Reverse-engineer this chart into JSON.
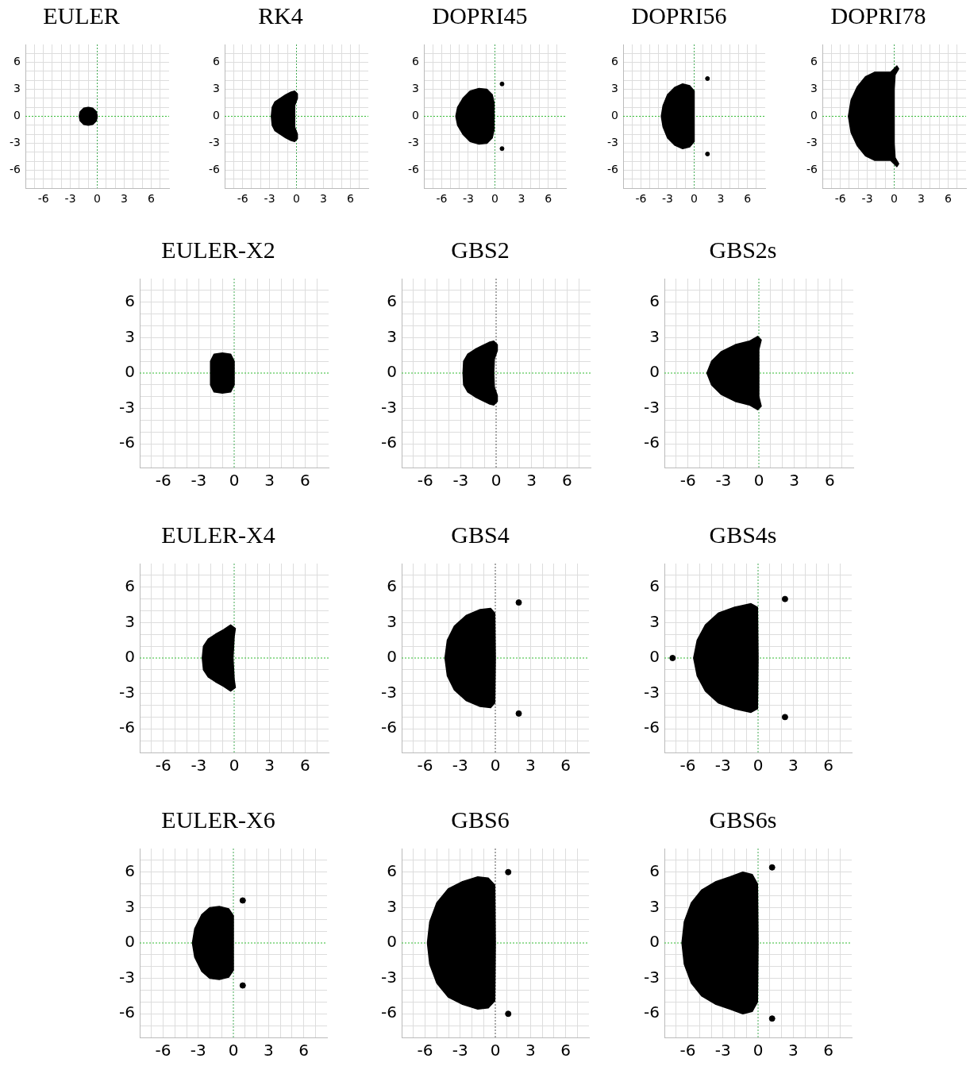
{
  "chart_data": [
    {
      "type": "area",
      "title": "EULER",
      "xlim": [
        -8,
        8
      ],
      "ylim": [
        -8,
        8
      ],
      "xticks": [
        {
          "value": -7,
          "label": null
        },
        -6,
        {
          "value": -5,
          "label": null
        },
        {
          "value": -4,
          "label": null
        },
        -3,
        {
          "value": -2,
          "label": null
        },
        {
          "value": -1,
          "label": null
        },
        0,
        {
          "value": 1,
          "label": null
        },
        {
          "value": 2,
          "label": null
        },
        3,
        {
          "value": 4,
          "label": null
        },
        {
          "value": 5,
          "label": null
        },
        6,
        {
          "value": 7,
          "label": null
        }
      ],
      "yticks": [
        {
          "value": -7,
          "label": null
        },
        -6,
        {
          "value": -5,
          "label": null
        },
        {
          "value": -4,
          "label": null
        },
        -3,
        {
          "value": -2,
          "label": null
        },
        {
          "value": -1,
          "label": null
        },
        0,
        {
          "value": 1,
          "label": null
        },
        {
          "value": 2,
          "label": null
        },
        3,
        {
          "value": 4,
          "label": null
        },
        {
          "value": 5,
          "label": null
        },
        6,
        {
          "value": 7,
          "label": null
        }
      ],
      "grid": true,
      "legend": false,
      "ref_lines": [
        {
          "axis": "x",
          "value": 0,
          "color": "#44aa55",
          "line_style": "dotted"
        },
        {
          "axis": "y",
          "value": 0,
          "color": "#33bb33",
          "line_style": "dotted"
        }
      ],
      "series": [
        {
          "type": "area",
          "color": "#000000",
          "x": [
            -2,
            -1.9,
            -1.5,
            -1,
            -0.5,
            -0.1,
            0,
            -0.1,
            -0.5,
            -1,
            -1.5,
            -1.9
          ],
          "values": [
            0,
            0.5,
            0.9,
            1,
            0.9,
            0.5,
            0,
            -0.5,
            -0.9,
            -1,
            -0.9,
            -0.5
          ]
        }
      ]
    },
    {
      "type": "area",
      "title": "RK4",
      "xlim": [
        -8,
        8
      ],
      "ylim": [
        -8,
        8
      ],
      "xticks": [
        {
          "value": -7,
          "label": null
        },
        -6,
        {
          "value": -5,
          "label": null
        },
        {
          "value": -4,
          "label": null
        },
        -3,
        {
          "value": -2,
          "label": null
        },
        {
          "value": -1,
          "label": null
        },
        0,
        {
          "value": 1,
          "label": null
        },
        {
          "value": 2,
          "label": null
        },
        3,
        {
          "value": 4,
          "label": null
        },
        {
          "value": 5,
          "label": null
        },
        6,
        {
          "value": 7,
          "label": null
        }
      ],
      "yticks": [
        {
          "value": -7,
          "label": null
        },
        -6,
        {
          "value": -5,
          "label": null
        },
        {
          "value": -4,
          "label": null
        },
        -3,
        {
          "value": -2,
          "label": null
        },
        {
          "value": -1,
          "label": null
        },
        0,
        {
          "value": 1,
          "label": null
        },
        {
          "value": 2,
          "label": null
        },
        3,
        {
          "value": 4,
          "label": null
        },
        {
          "value": 5,
          "label": null
        },
        6,
        {
          "value": 7,
          "label": null
        }
      ],
      "grid": true,
      "legend": false,
      "ref_lines": [
        {
          "axis": "x",
          "value": 0,
          "color": "#44aa55",
          "line_style": "dotted"
        },
        {
          "axis": "y",
          "value": 0,
          "color": "#33bb33",
          "line_style": "dotted"
        }
      ],
      "series": [
        {
          "type": "area",
          "color": "#000000",
          "x": [
            -2.8,
            -2.7,
            -2.4,
            -1.8,
            -1.2,
            -0.6,
            -0.2,
            0.1,
            0.1,
            -0.2,
            -0.2,
            -0.2,
            0.1,
            0.1,
            -0.2,
            -0.6,
            -1.2,
            -1.8,
            -2.4,
            -2.7
          ],
          "values": [
            0,
            1,
            1.6,
            2,
            2.4,
            2.7,
            2.8,
            2.5,
            2,
            1.2,
            0,
            -1.2,
            -2,
            -2.5,
            -2.8,
            -2.7,
            -2.4,
            -2,
            -1.6,
            -1
          ]
        }
      ]
    },
    {
      "type": "area",
      "title": "DOPRI45",
      "xlim": [
        -8,
        8
      ],
      "ylim": [
        -8,
        8
      ],
      "xticks": [
        {
          "value": -7,
          "label": null
        },
        -6,
        {
          "value": -5,
          "label": null
        },
        {
          "value": -4,
          "label": null
        },
        -3,
        {
          "value": -2,
          "label": null
        },
        {
          "value": -1,
          "label": null
        },
        0,
        {
          "value": 1,
          "label": null
        },
        {
          "value": 2,
          "label": null
        },
        3,
        {
          "value": 4,
          "label": null
        },
        {
          "value": 5,
          "label": null
        },
        6,
        {
          "value": 7,
          "label": null
        }
      ],
      "yticks": [
        {
          "value": -7,
          "label": null
        },
        -6,
        {
          "value": -5,
          "label": null
        },
        {
          "value": -4,
          "label": null
        },
        -3,
        {
          "value": -2,
          "label": null
        },
        {
          "value": -1,
          "label": null
        },
        0,
        {
          "value": 1,
          "label": null
        },
        {
          "value": 2,
          "label": null
        },
        3,
        {
          "value": 4,
          "label": null
        },
        {
          "value": 5,
          "label": null
        },
        6,
        {
          "value": 7,
          "label": null
        }
      ],
      "grid": true,
      "legend": false,
      "ref_lines": [
        {
          "axis": "x",
          "value": 0,
          "color": "#44aa55",
          "line_style": "dotted"
        },
        {
          "axis": "y",
          "value": 0,
          "color": "#33bb33",
          "line_style": "dotted"
        }
      ],
      "series": [
        {
          "type": "area",
          "color": "#000000",
          "x": [
            -4.4,
            -4.2,
            -3.6,
            -2.8,
            -1.8,
            -0.9,
            -0.3,
            -0.1,
            -0.1,
            -0.1,
            -0.3,
            -0.9,
            -1.8,
            -2.8,
            -3.6,
            -4.2
          ],
          "values": [
            0,
            1,
            2,
            2.8,
            3.1,
            3,
            2.4,
            1.5,
            0,
            -1.5,
            -2.4,
            -3,
            -3.1,
            -2.8,
            -2,
            -1
          ]
        },
        {
          "type": "scatter",
          "color": "#000000",
          "marker": "circle",
          "x": [
            0.8,
            0.8
          ],
          "values": [
            3.6,
            -3.6
          ]
        }
      ]
    },
    {
      "type": "area",
      "title": "DOPRI56",
      "xlim": [
        -8,
        8
      ],
      "ylim": [
        -8,
        8
      ],
      "xticks": [
        {
          "value": -7,
          "label": null
        },
        -6,
        {
          "value": -5,
          "label": null
        },
        {
          "value": -4,
          "label": null
        },
        -3,
        {
          "value": -2,
          "label": null
        },
        {
          "value": -1,
          "label": null
        },
        0,
        {
          "value": 1,
          "label": null
        },
        {
          "value": 2,
          "label": null
        },
        3,
        {
          "value": 4,
          "label": null
        },
        {
          "value": 5,
          "label": null
        },
        6,
        {
          "value": 7,
          "label": null
        }
      ],
      "yticks": [
        {
          "value": -7,
          "label": null
        },
        -6,
        {
          "value": -5,
          "label": null
        },
        {
          "value": -4,
          "label": null
        },
        -3,
        {
          "value": -2,
          "label": null
        },
        {
          "value": -1,
          "label": null
        },
        0,
        {
          "value": 1,
          "label": null
        },
        {
          "value": 2,
          "label": null
        },
        3,
        {
          "value": 4,
          "label": null
        },
        {
          "value": 5,
          "label": null
        },
        6,
        {
          "value": 7,
          "label": null
        }
      ],
      "grid": true,
      "legend": false,
      "ref_lines": [
        {
          "axis": "x",
          "value": 0,
          "color": "#44aa55",
          "line_style": "dotted"
        },
        {
          "axis": "y",
          "value": 0,
          "color": "#33bb33",
          "line_style": "dotted"
        }
      ],
      "series": [
        {
          "type": "area",
          "color": "#000000",
          "x": [
            -3.7,
            -3.5,
            -3,
            -2.2,
            -1.3,
            -0.5,
            0,
            0,
            0,
            -0.5,
            -1.3,
            -2.2,
            -3,
            -3.5
          ],
          "values": [
            0,
            1.2,
            2.4,
            3.2,
            3.6,
            3.4,
            2.8,
            0,
            -2.8,
            -3.4,
            -3.6,
            -3.2,
            -2.4,
            -1.2
          ]
        },
        {
          "type": "scatter",
          "color": "#000000",
          "marker": "circle",
          "x": [
            1.5,
            1.5
          ],
          "values": [
            4.2,
            -4.2
          ]
        }
      ]
    },
    {
      "type": "area",
      "title": "DOPRI78",
      "xlim": [
        -8,
        8
      ],
      "ylim": [
        -8,
        8
      ],
      "xticks": [
        {
          "value": -7,
          "label": null
        },
        -6,
        {
          "value": -5,
          "label": null
        },
        {
          "value": -4,
          "label": null
        },
        -3,
        {
          "value": -2,
          "label": null
        },
        {
          "value": -1,
          "label": null
        },
        0,
        {
          "value": 1,
          "label": null
        },
        {
          "value": 2,
          "label": null
        },
        3,
        {
          "value": 4,
          "label": null
        },
        {
          "value": 5,
          "label": null
        },
        6,
        {
          "value": 7,
          "label": null
        }
      ],
      "yticks": [
        {
          "value": -7,
          "label": null
        },
        -6,
        {
          "value": -5,
          "label": null
        },
        {
          "value": -4,
          "label": null
        },
        -3,
        {
          "value": -2,
          "label": null
        },
        {
          "value": -1,
          "label": null
        },
        0,
        {
          "value": 1,
          "label": null
        },
        {
          "value": 2,
          "label": null
        },
        3,
        {
          "value": 4,
          "label": null
        },
        {
          "value": 5,
          "label": null
        },
        6,
        {
          "value": 7,
          "label": null
        }
      ],
      "grid": true,
      "legend": false,
      "ref_lines": [
        {
          "axis": "x",
          "value": 0,
          "color": "#44aa55",
          "line_style": "dotted"
        },
        {
          "axis": "y",
          "value": 0,
          "color": "#33bb33",
          "line_style": "dotted"
        }
      ],
      "series": [
        {
          "type": "area",
          "color": "#000000",
          "x": [
            -5.1,
            -4.8,
            -4.1,
            -3.2,
            -2.2,
            -0.4,
            0,
            0.3,
            0.5,
            0.1,
            0,
            0,
            0,
            0.1,
            0.5,
            0.3,
            0,
            -0.4,
            -2.2,
            -3.2,
            -4.1,
            -4.8
          ],
          "values": [
            0,
            1.8,
            3.3,
            4.4,
            4.9,
            4.9,
            5.3,
            5.6,
            5.3,
            4.6,
            3,
            0,
            -3,
            -4.6,
            -5.3,
            -5.6,
            -5.3,
            -4.9,
            -4.9,
            -4.4,
            -3.3,
            -1.8
          ]
        }
      ]
    },
    {
      "type": "area",
      "title": "EULER-X2",
      "xlim": [
        -8,
        8
      ],
      "ylim": [
        -8,
        8
      ],
      "xticks": [
        {
          "value": -7,
          "label": null
        },
        -6,
        {
          "value": -5,
          "label": null
        },
        {
          "value": -4,
          "label": null
        },
        -3,
        {
          "value": -2,
          "label": null
        },
        {
          "value": -1,
          "label": null
        },
        0,
        {
          "value": 1,
          "label": null
        },
        {
          "value": 2,
          "label": null
        },
        3,
        {
          "value": 4,
          "label": null
        },
        {
          "value": 5,
          "label": null
        },
        6,
        {
          "value": 7,
          "label": null
        }
      ],
      "yticks": [
        {
          "value": -7,
          "label": null
        },
        -6,
        {
          "value": -5,
          "label": null
        },
        {
          "value": -4,
          "label": null
        },
        -3,
        {
          "value": -2,
          "label": null
        },
        {
          "value": -1,
          "label": null
        },
        0,
        {
          "value": 1,
          "label": null
        },
        {
          "value": 2,
          "label": null
        },
        3,
        {
          "value": 4,
          "label": null
        },
        {
          "value": 5,
          "label": null
        },
        6,
        {
          "value": 7,
          "label": null
        }
      ],
      "grid": true,
      "legend": false,
      "ref_lines": [
        {
          "axis": "x",
          "value": 0,
          "color": "#44aa55",
          "line_style": "dotted"
        },
        {
          "axis": "y",
          "value": 0,
          "color": "#33bb33",
          "line_style": "dotted"
        }
      ],
      "series": [
        {
          "type": "area",
          "color": "#000000",
          "x": [
            -2,
            -2,
            -1.7,
            -1,
            -0.3,
            0,
            0,
            0,
            -0.3,
            -1,
            -1.7,
            -2
          ],
          "values": [
            0,
            1,
            1.6,
            1.7,
            1.6,
            1,
            0,
            -1,
            -1.6,
            -1.7,
            -1.6,
            -1
          ]
        }
      ]
    },
    {
      "type": "area",
      "title": "GBS2",
      "xlim": [
        -8,
        8
      ],
      "ylim": [
        -8,
        8
      ],
      "xticks": [
        {
          "value": -7,
          "label": null
        },
        -6,
        {
          "value": -5,
          "label": null
        },
        {
          "value": -4,
          "label": null
        },
        -3,
        {
          "value": -2,
          "label": null
        },
        {
          "value": -1,
          "label": null
        },
        0,
        {
          "value": 1,
          "label": null
        },
        {
          "value": 2,
          "label": null
        },
        3,
        {
          "value": 4,
          "label": null
        },
        {
          "value": 5,
          "label": null
        },
        6,
        {
          "value": 7,
          "label": null
        }
      ],
      "yticks": [
        {
          "value": -7,
          "label": null
        },
        -6,
        {
          "value": -5,
          "label": null
        },
        {
          "value": -4,
          "label": null
        },
        -3,
        {
          "value": -2,
          "label": null
        },
        {
          "value": -1,
          "label": null
        },
        0,
        {
          "value": 1,
          "label": null
        },
        {
          "value": 2,
          "label": null
        },
        3,
        {
          "value": 4,
          "label": null
        },
        {
          "value": 5,
          "label": null
        },
        6,
        {
          "value": 7,
          "label": null
        }
      ],
      "grid": true,
      "legend": false,
      "ref_lines": [
        {
          "axis": "x",
          "value": 0,
          "color": "#555555",
          "line_style": "dotted"
        },
        {
          "axis": "y",
          "value": 0,
          "color": "#33bb33",
          "line_style": "dotted"
        }
      ],
      "series": [
        {
          "type": "area",
          "color": "#000000",
          "x": [
            -2.8,
            -2.75,
            -2.4,
            -1.8,
            -1.2,
            -0.6,
            -0.2,
            0.1,
            0.1,
            -0.15,
            -0.2,
            -0.15,
            0.1,
            0.1,
            -0.2,
            -0.6,
            -1.2,
            -1.8,
            -2.4,
            -2.75
          ],
          "values": [
            0,
            1,
            1.6,
            2,
            2.3,
            2.6,
            2.7,
            2.4,
            1.9,
            1.2,
            0,
            -1.2,
            -1.9,
            -2.4,
            -2.7,
            -2.6,
            -2.3,
            -2,
            -1.6,
            -1
          ]
        }
      ]
    },
    {
      "type": "area",
      "title": "GBS2s",
      "xlim": [
        -8,
        8
      ],
      "ylim": [
        -8,
        8
      ],
      "xticks": [
        {
          "value": -7,
          "label": null
        },
        -6,
        {
          "value": -5,
          "label": null
        },
        {
          "value": -4,
          "label": null
        },
        -3,
        {
          "value": -2,
          "label": null
        },
        {
          "value": -1,
          "label": null
        },
        0,
        {
          "value": 1,
          "label": null
        },
        {
          "value": 2,
          "label": null
        },
        3,
        {
          "value": 4,
          "label": null
        },
        {
          "value": 5,
          "label": null
        },
        6,
        {
          "value": 7,
          "label": null
        }
      ],
      "yticks": [
        {
          "value": -7,
          "label": null
        },
        -6,
        {
          "value": -5,
          "label": null
        },
        {
          "value": -4,
          "label": null
        },
        -3,
        {
          "value": -2,
          "label": null
        },
        {
          "value": -1,
          "label": null
        },
        0,
        {
          "value": 1,
          "label": null
        },
        {
          "value": 2,
          "label": null
        },
        3,
        {
          "value": 4,
          "label": null
        },
        {
          "value": 5,
          "label": null
        },
        6,
        {
          "value": 7,
          "label": null
        }
      ],
      "grid": true,
      "legend": false,
      "ref_lines": [
        {
          "axis": "x",
          "value": 0,
          "color": "#44aa55",
          "line_style": "dotted"
        },
        {
          "axis": "y",
          "value": 0,
          "color": "#33bb33",
          "line_style": "dotted"
        }
      ],
      "series": [
        {
          "type": "area",
          "color": "#000000",
          "x": [
            -4.4,
            -4,
            -3.2,
            -2,
            -0.8,
            -0.1,
            0.2,
            0,
            0,
            0,
            0.2,
            -0.1,
            -0.8,
            -2,
            -3.2,
            -4
          ],
          "values": [
            0,
            1,
            1.8,
            2.4,
            2.7,
            3.1,
            2.8,
            2,
            0,
            -2,
            -2.8,
            -3.1,
            -2.7,
            -2.4,
            -1.8,
            -1
          ]
        }
      ]
    },
    {
      "type": "area",
      "title": "EULER-X4",
      "xlim": [
        -8,
        8
      ],
      "ylim": [
        -8,
        8
      ],
      "xticks": [
        {
          "value": -7,
          "label": null
        },
        -6,
        {
          "value": -5,
          "label": null
        },
        {
          "value": -4,
          "label": null
        },
        -3,
        {
          "value": -2,
          "label": null
        },
        {
          "value": -1,
          "label": null
        },
        0,
        {
          "value": 1,
          "label": null
        },
        {
          "value": 2,
          "label": null
        },
        3,
        {
          "value": 4,
          "label": null
        },
        {
          "value": 5,
          "label": null
        },
        6,
        {
          "value": 7,
          "label": null
        }
      ],
      "yticks": [
        {
          "value": -7,
          "label": null
        },
        -6,
        {
          "value": -5,
          "label": null
        },
        {
          "value": -4,
          "label": null
        },
        -3,
        {
          "value": -2,
          "label": null
        },
        {
          "value": -1,
          "label": null
        },
        0,
        {
          "value": 1,
          "label": null
        },
        {
          "value": 2,
          "label": null
        },
        3,
        {
          "value": 4,
          "label": null
        },
        {
          "value": 5,
          "label": null
        },
        6,
        {
          "value": 7,
          "label": null
        }
      ],
      "grid": true,
      "legend": false,
      "ref_lines": [
        {
          "axis": "x",
          "value": 0,
          "color": "#44aa55",
          "line_style": "dotted"
        },
        {
          "axis": "y",
          "value": 0,
          "color": "#33bb33",
          "line_style": "dotted"
        }
      ],
      "series": [
        {
          "type": "area",
          "color": "#000000",
          "x": [
            -2.7,
            -2.6,
            -2.2,
            -1.6,
            -0.9,
            -0.3,
            0.1,
            0,
            -0.1,
            0,
            0.1,
            -0.3,
            -0.9,
            -1.6,
            -2.2,
            -2.6
          ],
          "values": [
            0,
            1,
            1.6,
            2,
            2.4,
            2.8,
            2.5,
            1.8,
            0,
            -1.8,
            -2.5,
            -2.8,
            -2.4,
            -2,
            -1.6,
            -1
          ]
        }
      ]
    },
    {
      "type": "area",
      "title": "GBS4",
      "xlim": [
        -8,
        8
      ],
      "ylim": [
        -8,
        8
      ],
      "xticks": [
        {
          "value": -7,
          "label": null
        },
        -6,
        {
          "value": -5,
          "label": null
        },
        {
          "value": -4,
          "label": null
        },
        -3,
        {
          "value": -2,
          "label": null
        },
        {
          "value": -1,
          "label": null
        },
        0,
        {
          "value": 1,
          "label": null
        },
        {
          "value": 2,
          "label": null
        },
        3,
        {
          "value": 4,
          "label": null
        },
        {
          "value": 5,
          "label": null
        },
        6,
        {
          "value": 7,
          "label": null
        }
      ],
      "yticks": [
        {
          "value": -7,
          "label": null
        },
        -6,
        {
          "value": -5,
          "label": null
        },
        {
          "value": -4,
          "label": null
        },
        -3,
        {
          "value": -2,
          "label": null
        },
        {
          "value": -1,
          "label": null
        },
        0,
        {
          "value": 1,
          "label": null
        },
        {
          "value": 2,
          "label": null
        },
        3,
        {
          "value": 4,
          "label": null
        },
        {
          "value": 5,
          "label": null
        },
        6,
        {
          "value": 7,
          "label": null
        }
      ],
      "grid": true,
      "legend": false,
      "ref_lines": [
        {
          "axis": "x",
          "value": 0,
          "color": "#555555",
          "line_style": "dotted"
        },
        {
          "axis": "y",
          "value": 0,
          "color": "#33bb33",
          "line_style": "dotted"
        }
      ],
      "series": [
        {
          "type": "area",
          "color": "#000000",
          "x": [
            -4.3,
            -4.1,
            -3.5,
            -2.5,
            -1.3,
            -0.4,
            -0.05,
            0,
            -0.05,
            -0.4,
            -1.3,
            -2.5,
            -3.5,
            -4.1
          ],
          "values": [
            0,
            1.5,
            2.7,
            3.6,
            4.1,
            4.2,
            3.8,
            0,
            -3.8,
            -4.2,
            -4.1,
            -3.6,
            -2.7,
            -1.5
          ]
        },
        {
          "type": "scatter",
          "color": "#000000",
          "marker": "circle",
          "x": [
            2,
            2
          ],
          "values": [
            4.7,
            -4.7
          ]
        }
      ]
    },
    {
      "type": "area",
      "title": "GBS4s",
      "xlim": [
        -8,
        8
      ],
      "ylim": [
        -8,
        8
      ],
      "xticks": [
        {
          "value": -7,
          "label": null
        },
        -6,
        {
          "value": -5,
          "label": null
        },
        {
          "value": -4,
          "label": null
        },
        -3,
        {
          "value": -2,
          "label": null
        },
        {
          "value": -1,
          "label": null
        },
        0,
        {
          "value": 1,
          "label": null
        },
        {
          "value": 2,
          "label": null
        },
        3,
        {
          "value": 4,
          "label": null
        },
        {
          "value": 5,
          "label": null
        },
        6,
        {
          "value": 7,
          "label": null
        }
      ],
      "yticks": [
        {
          "value": -7,
          "label": null
        },
        -6,
        {
          "value": -5,
          "label": null
        },
        {
          "value": -4,
          "label": null
        },
        -3,
        {
          "value": -2,
          "label": null
        },
        {
          "value": -1,
          "label": null
        },
        0,
        {
          "value": 1,
          "label": null
        },
        {
          "value": 2,
          "label": null
        },
        3,
        {
          "value": 4,
          "label": null
        },
        {
          "value": 5,
          "label": null
        },
        6,
        {
          "value": 7,
          "label": null
        }
      ],
      "grid": true,
      "legend": false,
      "ref_lines": [
        {
          "axis": "x",
          "value": 0,
          "color": "#44aa55",
          "line_style": "dotted"
        },
        {
          "axis": "y",
          "value": 0,
          "color": "#33bb33",
          "line_style": "dotted"
        }
      ],
      "series": [
        {
          "type": "area",
          "color": "#000000",
          "x": [
            -5.5,
            -5.2,
            -4.5,
            -3.4,
            -2,
            -0.6,
            -0.05,
            0,
            -0.05,
            -0.6,
            -2,
            -3.4,
            -4.5,
            -5.2
          ],
          "values": [
            0,
            1.5,
            2.8,
            3.8,
            4.3,
            4.6,
            4.3,
            0,
            -4.3,
            -4.6,
            -4.3,
            -3.8,
            -2.8,
            -1.5
          ]
        },
        {
          "type": "scatter",
          "color": "#000000",
          "marker": "circle",
          "x": [
            -7.3,
            2.3,
            2.3
          ],
          "values": [
            0,
            5,
            -5
          ]
        }
      ]
    },
    {
      "type": "area",
      "title": "EULER-X6",
      "xlim": [
        -8,
        8
      ],
      "ylim": [
        -8,
        8
      ],
      "xticks": [
        {
          "value": -7,
          "label": null
        },
        -6,
        {
          "value": -5,
          "label": null
        },
        {
          "value": -4,
          "label": null
        },
        -3,
        {
          "value": -2,
          "label": null
        },
        {
          "value": -1,
          "label": null
        },
        0,
        {
          "value": 1,
          "label": null
        },
        {
          "value": 2,
          "label": null
        },
        3,
        {
          "value": 4,
          "label": null
        },
        {
          "value": 5,
          "label": null
        },
        6,
        {
          "value": 7,
          "label": null
        }
      ],
      "yticks": [
        {
          "value": -7,
          "label": null
        },
        -6,
        {
          "value": -5,
          "label": null
        },
        {
          "value": -4,
          "label": null
        },
        -3,
        {
          "value": -2,
          "label": null
        },
        {
          "value": -1,
          "label": null
        },
        0,
        {
          "value": 1,
          "label": null
        },
        {
          "value": 2,
          "label": null
        },
        3,
        {
          "value": 4,
          "label": null
        },
        {
          "value": 5,
          "label": null
        },
        6,
        {
          "value": 7,
          "label": null
        }
      ],
      "grid": true,
      "legend": false,
      "ref_lines": [
        {
          "axis": "x",
          "value": 0,
          "color": "#44aa55",
          "line_style": "dotted"
        },
        {
          "axis": "y",
          "value": 0,
          "color": "#33bb33",
          "line_style": "dotted"
        }
      ],
      "series": [
        {
          "type": "area",
          "color": "#000000",
          "x": [
            -3.5,
            -3.3,
            -2.7,
            -2,
            -1.2,
            -0.4,
            0,
            0,
            0,
            -0.4,
            -1.2,
            -2,
            -2.7,
            -3.3
          ],
          "values": [
            0,
            1.2,
            2.4,
            3,
            3.1,
            2.9,
            2.3,
            0,
            -2.3,
            -2.9,
            -3.1,
            -3,
            -2.4,
            -1.2
          ]
        },
        {
          "type": "scatter",
          "color": "#000000",
          "marker": "circle",
          "x": [
            0.8,
            0.8
          ],
          "values": [
            3.6,
            -3.6
          ]
        }
      ]
    },
    {
      "type": "area",
      "title": "GBS6",
      "xlim": [
        -8,
        8
      ],
      "ylim": [
        -8,
        8
      ],
      "xticks": [
        {
          "value": -7,
          "label": null
        },
        -6,
        {
          "value": -5,
          "label": null
        },
        {
          "value": -4,
          "label": null
        },
        -3,
        {
          "value": -2,
          "label": null
        },
        {
          "value": -1,
          "label": null
        },
        0,
        {
          "value": 1,
          "label": null
        },
        {
          "value": 2,
          "label": null
        },
        3,
        {
          "value": 4,
          "label": null
        },
        {
          "value": 5,
          "label": null
        },
        6,
        {
          "value": 7,
          "label": null
        }
      ],
      "yticks": [
        {
          "value": -7,
          "label": null
        },
        -6,
        {
          "value": -5,
          "label": null
        },
        {
          "value": -4,
          "label": null
        },
        -3,
        {
          "value": -2,
          "label": null
        },
        {
          "value": -1,
          "label": null
        },
        0,
        {
          "value": 1,
          "label": null
        },
        {
          "value": 2,
          "label": null
        },
        3,
        {
          "value": 4,
          "label": null
        },
        {
          "value": 5,
          "label": null
        },
        6,
        {
          "value": 7,
          "label": null
        }
      ],
      "grid": true,
      "legend": false,
      "ref_lines": [
        {
          "axis": "x",
          "value": 0,
          "color": "#555555",
          "line_style": "dotted"
        },
        {
          "axis": "y",
          "value": 0,
          "color": "#33bb33",
          "line_style": "dotted"
        }
      ],
      "series": [
        {
          "type": "area",
          "color": "#000000",
          "x": [
            -5.8,
            -5.6,
            -5,
            -4,
            -2.8,
            -1.5,
            -0.6,
            -0.05,
            0,
            -0.05,
            -0.6,
            -1.5,
            -2.8,
            -4,
            -5,
            -5.6
          ],
          "values": [
            0,
            1.8,
            3.4,
            4.6,
            5.2,
            5.6,
            5.5,
            4.9,
            0,
            -4.9,
            -5.5,
            -5.6,
            -5.2,
            -4.6,
            -3.4,
            -1.8
          ]
        },
        {
          "type": "scatter",
          "color": "#000000",
          "marker": "circle",
          "x": [
            1.1,
            1.1
          ],
          "values": [
            6,
            -6
          ]
        }
      ]
    },
    {
      "type": "area",
      "title": "GBS6s",
      "xlim": [
        -8,
        8
      ],
      "ylim": [
        -8,
        8
      ],
      "xticks": [
        {
          "value": -7,
          "label": null
        },
        -6,
        {
          "value": -5,
          "label": null
        },
        {
          "value": -4,
          "label": null
        },
        -3,
        {
          "value": -2,
          "label": null
        },
        {
          "value": -1,
          "label": null
        },
        0,
        {
          "value": 1,
          "label": null
        },
        {
          "value": 2,
          "label": null
        },
        3,
        {
          "value": 4,
          "label": null
        },
        {
          "value": 5,
          "label": null
        },
        6,
        {
          "value": 7,
          "label": null
        }
      ],
      "yticks": [
        {
          "value": -7,
          "label": null
        },
        -6,
        {
          "value": -5,
          "label": null
        },
        {
          "value": -4,
          "label": null
        },
        -3,
        {
          "value": -2,
          "label": null
        },
        {
          "value": -1,
          "label": null
        },
        0,
        {
          "value": 1,
          "label": null
        },
        {
          "value": 2,
          "label": null
        },
        3,
        {
          "value": 4,
          "label": null
        },
        {
          "value": 5,
          "label": null
        },
        6,
        {
          "value": 7,
          "label": null
        }
      ],
      "grid": true,
      "legend": false,
      "ref_lines": [
        {
          "axis": "x",
          "value": 0,
          "color": "#44aa55",
          "line_style": "dotted"
        },
        {
          "axis": "y",
          "value": 0,
          "color": "#33bb33",
          "line_style": "dotted"
        }
      ],
      "series": [
        {
          "type": "area",
          "color": "#000000",
          "x": [
            -6.5,
            -6.3,
            -5.7,
            -4.8,
            -3.6,
            -2.4,
            -1.3,
            -0.5,
            -0.05,
            0,
            -0.05,
            -0.5,
            -1.3,
            -2.4,
            -3.6,
            -4.8,
            -5.7,
            -6.3
          ],
          "values": [
            0,
            1.8,
            3.4,
            4.5,
            5.2,
            5.6,
            6,
            5.8,
            5,
            0,
            -5,
            -5.8,
            -6,
            -5.6,
            -5.2,
            -4.5,
            -3.4,
            -1.8
          ]
        },
        {
          "type": "scatter",
          "color": "#000000",
          "marker": "circle",
          "x": [
            1.2,
            1.2
          ],
          "values": [
            6.4,
            -6.4
          ]
        }
      ]
    }
  ]
}
